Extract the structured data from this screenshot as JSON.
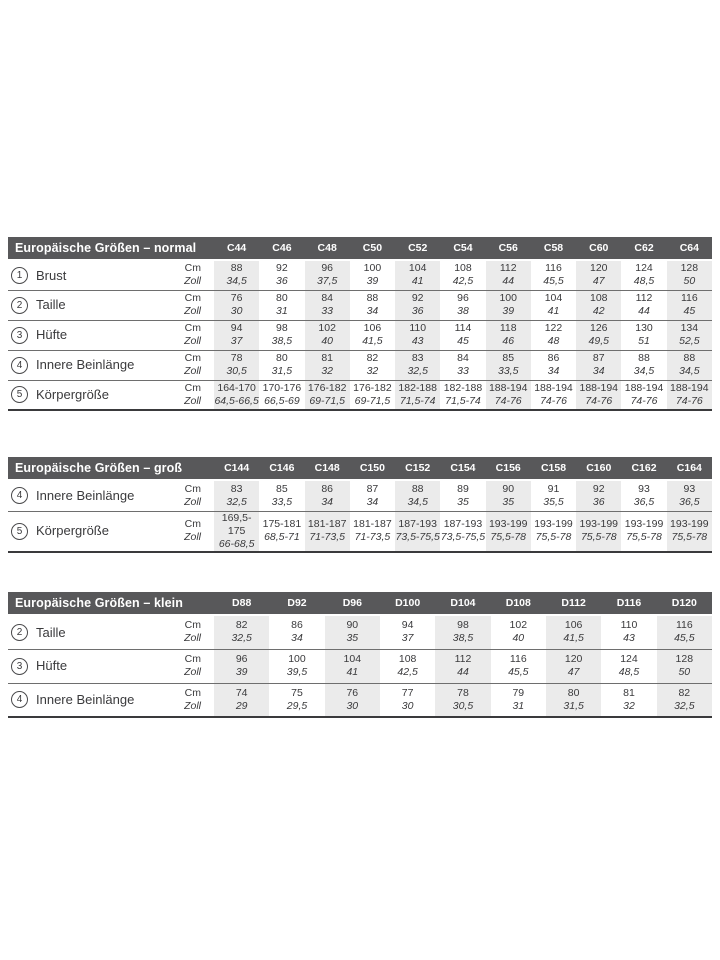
{
  "colors": {
    "header_bg": "#58585a",
    "header_text": "#ffffff",
    "body_text": "#3a3a3c",
    "stripe": "#ebebeb",
    "row_line": "#6e6e6e",
    "bottom_line": "#3a3a3c"
  },
  "unit_labels": {
    "cm": "Cm",
    "zoll": "Zoll"
  },
  "tables": [
    {
      "title": "Europäische Größen – normal",
      "columns": [
        "C44",
        "C46",
        "C48",
        "C50",
        "C52",
        "C54",
        "C56",
        "C58",
        "C60",
        "C62",
        "C64"
      ],
      "rows": [
        {
          "num": "1",
          "label": "Brust",
          "cm": [
            "88",
            "92",
            "96",
            "100",
            "104",
            "108",
            "112",
            "116",
            "120",
            "124",
            "128"
          ],
          "zoll": [
            "34,5",
            "36",
            "37,5",
            "39",
            "41",
            "42,5",
            "44",
            "45,5",
            "47",
            "48,5",
            "50"
          ]
        },
        {
          "num": "2",
          "label": "Taille",
          "cm": [
            "76",
            "80",
            "84",
            "88",
            "92",
            "96",
            "100",
            "104",
            "108",
            "112",
            "116"
          ],
          "zoll": [
            "30",
            "31",
            "33",
            "34",
            "36",
            "38",
            "39",
            "41",
            "42",
            "44",
            "45"
          ]
        },
        {
          "num": "3",
          "label": "Hüfte",
          "cm": [
            "94",
            "98",
            "102",
            "106",
            "110",
            "114",
            "118",
            "122",
            "126",
            "130",
            "134"
          ],
          "zoll": [
            "37",
            "38,5",
            "40",
            "41,5",
            "43",
            "45",
            "46",
            "48",
            "49,5",
            "51",
            "52,5"
          ]
        },
        {
          "num": "4",
          "label": "Innere Beinlänge",
          "cm": [
            "78",
            "80",
            "81",
            "82",
            "83",
            "84",
            "85",
            "86",
            "87",
            "88",
            "88"
          ],
          "zoll": [
            "30,5",
            "31,5",
            "32",
            "32",
            "32,5",
            "33",
            "33,5",
            "34",
            "34",
            "34,5",
            "34,5"
          ]
        },
        {
          "num": "5",
          "label": "Körpergröße",
          "cm": [
            "164-170",
            "170-176",
            "176-182",
            "176-182",
            "182-188",
            "182-188",
            "188-194",
            "188-194",
            "188-194",
            "188-194",
            "188-194"
          ],
          "zoll": [
            "64,5-66,5",
            "66,5-69",
            "69-71,5",
            "69-71,5",
            "71,5-74",
            "71,5-74",
            "74-76",
            "74-76",
            "74-76",
            "74-76",
            "74-76"
          ]
        }
      ]
    },
    {
      "title": "Europäische Größen – groß",
      "columns": [
        "C144",
        "C146",
        "C148",
        "C150",
        "C152",
        "C154",
        "C156",
        "C158",
        "C160",
        "C162",
        "C164"
      ],
      "rows": [
        {
          "num": "4",
          "label": "Innere Beinlänge",
          "cm": [
            "83",
            "85",
            "86",
            "87",
            "88",
            "89",
            "90",
            "91",
            "92",
            "93",
            "93"
          ],
          "zoll": [
            "32,5",
            "33,5",
            "34",
            "34",
            "34,5",
            "35",
            "35",
            "35,5",
            "36",
            "36,5",
            "36,5"
          ]
        },
        {
          "num": "5",
          "label": "Körpergröße",
          "cm": [
            "169,5-175",
            "175-181",
            "181-187",
            "181-187",
            "187-193",
            "187-193",
            "193-199",
            "193-199",
            "193-199",
            "193-199",
            "193-199"
          ],
          "zoll": [
            "66-68,5",
            "68,5-71",
            "71-73,5",
            "71-73,5",
            "73,5-75,5",
            "73,5-75,5",
            "75,5-78",
            "75,5-78",
            "75,5-78",
            "75,5-78",
            "75,5-78"
          ]
        }
      ]
    },
    {
      "title": "Europäische Größen – klein",
      "columns": [
        "D88",
        "D92",
        "D96",
        "D100",
        "D104",
        "D108",
        "D112",
        "D116",
        "D120"
      ],
      "rows": [
        {
          "num": "2",
          "label": "Taille",
          "cm": [
            "82",
            "86",
            "90",
            "94",
            "98",
            "102",
            "106",
            "110",
            "116"
          ],
          "zoll": [
            "32,5",
            "34",
            "35",
            "37",
            "38,5",
            "40",
            "41,5",
            "43",
            "45,5"
          ]
        },
        {
          "num": "3",
          "label": "Hüfte",
          "cm": [
            "96",
            "100",
            "104",
            "108",
            "112",
            "116",
            "120",
            "124",
            "128"
          ],
          "zoll": [
            "39",
            "39,5",
            "41",
            "42,5",
            "44",
            "45,5",
            "47",
            "48,5",
            "50"
          ]
        },
        {
          "num": "4",
          "label": "Innere Beinlänge",
          "cm": [
            "74",
            "75",
            "76",
            "77",
            "78",
            "79",
            "80",
            "81",
            "82"
          ],
          "zoll": [
            "29",
            "29,5",
            "30",
            "30",
            "30,5",
            "31",
            "31,5",
            "32",
            "32,5"
          ]
        }
      ]
    }
  ]
}
